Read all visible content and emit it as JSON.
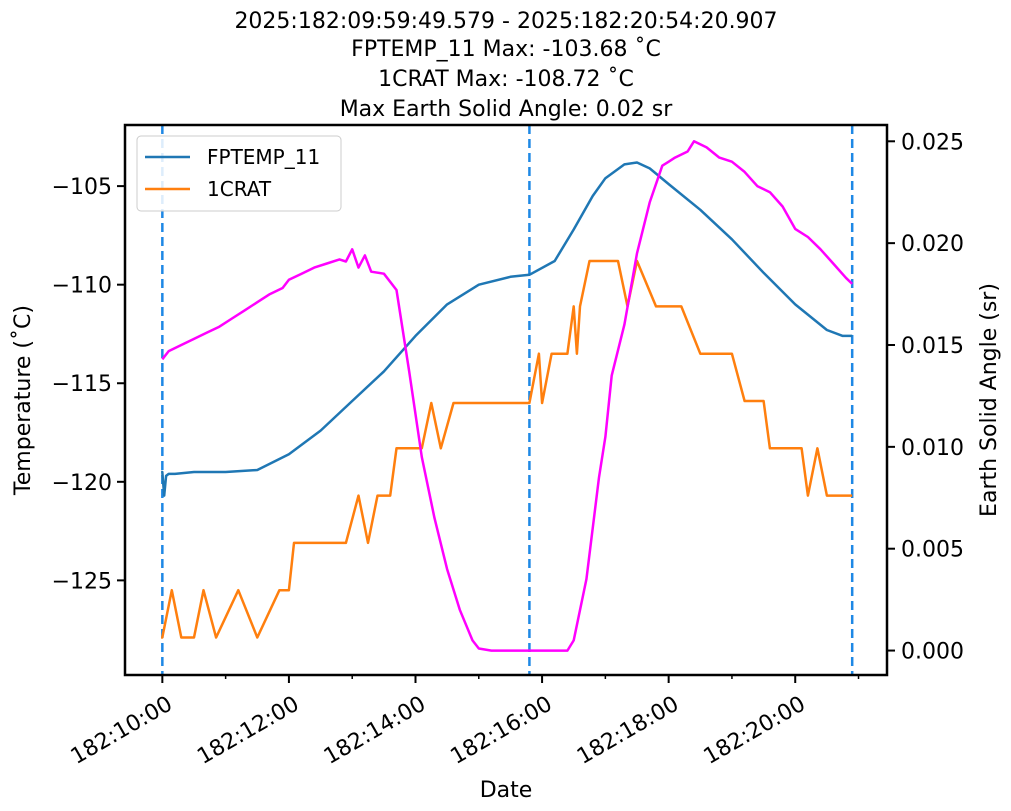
{
  "chart_data": {
    "type": "line",
    "title_lines": [
      "2025:182:09:59:49.579 - 2025:182:20:54:20.907",
      "FPTEMP_11 Max: -103.68 ˚C",
      "1CRAT Max: -108.72 ˚C",
      "Max Earth Solid Angle: 0.02 sr"
    ],
    "xlabel": "Date",
    "ylabel": "Temperature (˚C)",
    "y2label": "Earth Solid Angle (sr)",
    "x_units": "hours (day 182)",
    "xlim": [
      9.41,
      21.45
    ],
    "ylim": [
      -129.8,
      -101.9
    ],
    "y2lim": [
      -0.0012,
      0.0258
    ],
    "x_ticks": [
      {
        "value": 10,
        "label": "182:10:00"
      },
      {
        "value": 12,
        "label": "182:12:00"
      },
      {
        "value": 14,
        "label": "182:14:00"
      },
      {
        "value": 16,
        "label": "182:16:00"
      },
      {
        "value": 18,
        "label": "182:18:00"
      },
      {
        "value": 20,
        "label": "182:20:00"
      }
    ],
    "x_minor_ticks": [
      11,
      13,
      15,
      17,
      19,
      21
    ],
    "y_ticks": [
      {
        "value": -105,
        "label": "−105"
      },
      {
        "value": -110,
        "label": "−110"
      },
      {
        "value": -115,
        "label": "−115"
      },
      {
        "value": -120,
        "label": "−120"
      },
      {
        "value": -125,
        "label": "−125"
      }
    ],
    "y2_ticks": [
      {
        "value": 0.025,
        "label": "0.025"
      },
      {
        "value": 0.02,
        "label": "0.020"
      },
      {
        "value": 0.015,
        "label": "0.015"
      },
      {
        "value": 0.01,
        "label": "0.010"
      },
      {
        "value": 0.005,
        "label": "0.005"
      },
      {
        "value": 0.0,
        "label": "0.000"
      }
    ],
    "vlines": [
      10.0,
      15.8,
      20.9
    ],
    "legend_position": "top-left",
    "series": [
      {
        "name": "FPTEMP_11",
        "color": "#1f77b4",
        "axis": "left",
        "in_legend": true,
        "x": [
          9.98,
          10.0,
          10.03,
          10.06,
          10.1,
          10.2,
          10.5,
          11.0,
          11.5,
          12.0,
          12.5,
          13.0,
          13.5,
          14.0,
          14.5,
          15.0,
          15.5,
          15.8,
          16.2,
          16.5,
          16.8,
          17.0,
          17.3,
          17.5,
          17.7,
          18.0,
          18.5,
          19.0,
          19.5,
          20.0,
          20.5,
          20.75,
          20.9
        ],
        "y": [
          -119.5,
          -119.5,
          -120.7,
          -119.7,
          -119.6,
          -119.6,
          -119.5,
          -119.5,
          -119.4,
          -118.6,
          -117.4,
          -115.9,
          -114.4,
          -112.6,
          -111.0,
          -110.0,
          -109.6,
          -109.5,
          -108.8,
          -107.2,
          -105.5,
          -104.6,
          -103.9,
          -103.8,
          -104.1,
          -104.9,
          -106.2,
          -107.7,
          -109.4,
          -111.0,
          -112.3,
          -112.6,
          -112.6
        ]
      },
      {
        "name": "1CRAT",
        "color": "#ff7f0e",
        "axis": "left",
        "in_legend": true,
        "x": [
          9.98,
          10.0,
          10.15,
          10.3,
          10.5,
          10.65,
          10.85,
          11.2,
          11.5,
          11.85,
          11.95,
          12.0,
          12.08,
          12.2,
          12.4,
          12.9,
          13.1,
          13.25,
          13.4,
          13.6,
          13.7,
          14.0,
          14.1,
          14.25,
          14.4,
          14.6,
          15.0,
          15.5,
          15.8,
          15.95,
          16.0,
          16.15,
          16.4,
          16.5,
          16.55,
          16.6,
          16.75,
          17.0,
          17.2,
          17.35,
          17.5,
          17.8,
          17.9,
          18.2,
          18.5,
          18.6,
          18.8,
          19.0,
          19.2,
          19.5,
          19.6,
          19.9,
          20.1,
          20.2,
          20.35,
          20.5,
          20.9
        ],
        "y": [
          -127.9,
          -127.9,
          -125.5,
          -127.9,
          -127.9,
          -125.5,
          -127.9,
          -125.5,
          -127.9,
          -125.5,
          -125.5,
          -125.5,
          -123.1,
          -123.1,
          -123.1,
          -123.1,
          -120.7,
          -123.1,
          -120.7,
          -120.7,
          -118.3,
          -118.3,
          -118.3,
          -116.0,
          -118.3,
          -116.0,
          -116.0,
          -116.0,
          -116.0,
          -113.5,
          -116.0,
          -113.5,
          -113.5,
          -111.1,
          -113.5,
          -111.1,
          -108.8,
          -108.8,
          -108.8,
          -111.1,
          -108.8,
          -111.1,
          -111.1,
          -111.1,
          -113.5,
          -113.5,
          -113.5,
          -113.5,
          -115.9,
          -115.9,
          -118.3,
          -118.3,
          -118.3,
          -120.7,
          -118.3,
          -120.7,
          -120.7
        ]
      },
      {
        "name": "Earth Solid Angle",
        "color": "#ff00ff",
        "axis": "right",
        "in_legend": false,
        "x": [
          10.0,
          10.1,
          10.3,
          10.5,
          10.7,
          10.9,
          11.1,
          11.3,
          11.5,
          11.7,
          11.9,
          12.0,
          12.2,
          12.4,
          12.6,
          12.8,
          12.9,
          13.0,
          13.1,
          13.2,
          13.3,
          13.5,
          13.7,
          13.9,
          14.1,
          14.3,
          14.5,
          14.7,
          14.9,
          15.0,
          15.2,
          15.5,
          15.8,
          16.0,
          16.2,
          16.4,
          16.5,
          16.7,
          16.9,
          17.0,
          17.1,
          17.3,
          17.5,
          17.7,
          17.9,
          18.0,
          18.1,
          18.3,
          18.4,
          18.6,
          18.8,
          19.0,
          19.2,
          19.4,
          19.6,
          19.8,
          20.0,
          20.2,
          20.4,
          20.6,
          20.8,
          20.9
        ],
        "y": [
          0.0143,
          0.0147,
          0.015,
          0.0153,
          0.0156,
          0.0159,
          0.0163,
          0.0167,
          0.0171,
          0.0175,
          0.0178,
          0.0182,
          0.0185,
          0.0188,
          0.019,
          0.0192,
          0.0191,
          0.0197,
          0.0188,
          0.0194,
          0.0186,
          0.0185,
          0.0177,
          0.0137,
          0.0095,
          0.0065,
          0.004,
          0.002,
          0.0005,
          0.0001,
          0.0,
          0.0,
          0.0,
          0.0,
          0.0,
          0.0,
          0.0005,
          0.0035,
          0.0085,
          0.0105,
          0.0135,
          0.016,
          0.0195,
          0.022,
          0.0238,
          0.024,
          0.0242,
          0.0245,
          0.025,
          0.0247,
          0.0242,
          0.024,
          0.0235,
          0.0228,
          0.0225,
          0.0218,
          0.0207,
          0.0203,
          0.0197,
          0.019,
          0.0183,
          0.018
        ]
      }
    ]
  }
}
